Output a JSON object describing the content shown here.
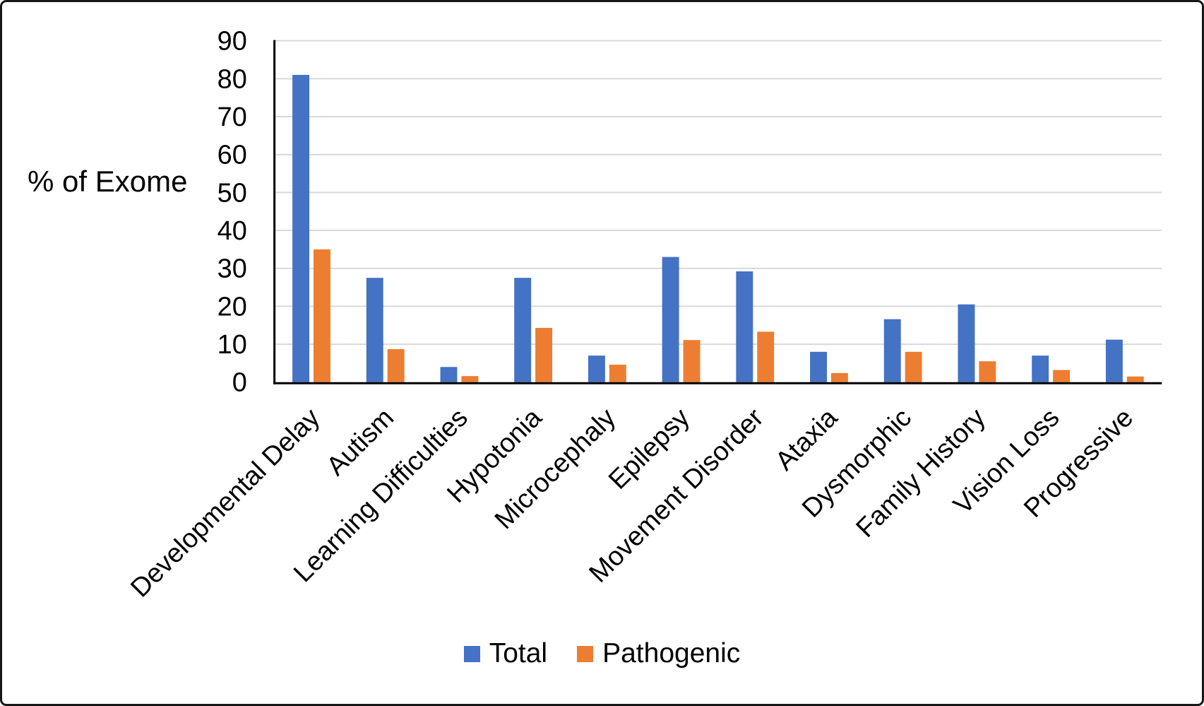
{
  "chart_data": {
    "type": "bar",
    "title": "",
    "ylabel": "% of Exome",
    "xlabel": "",
    "categories": [
      "Developmental Delay",
      "Autism",
      "Learning Difficulties",
      "Hypotonia",
      "Microcephaly",
      "Epilepsy",
      "Movement Disorder",
      "Ataxia",
      "Dysmorphic",
      "Family History",
      "Vision Loss",
      "Progressive"
    ],
    "series": [
      {
        "name": "Total",
        "color": "#4472C4",
        "values": [
          81,
          27.5,
          4,
          27.5,
          7,
          33,
          29.2,
          8,
          16.6,
          20.5,
          7,
          11.2
        ]
      },
      {
        "name": "Pathogenic",
        "color": "#ED7D31",
        "values": [
          35,
          8.7,
          1.6,
          14.3,
          4.6,
          11.1,
          13.3,
          2.4,
          8,
          5.5,
          3.2,
          1.5
        ]
      }
    ],
    "ylim": [
      0,
      90
    ],
    "yticks": [
      0,
      10,
      20,
      30,
      40,
      50,
      60,
      70,
      80,
      90
    ],
    "grid": true,
    "gridline_color": "#D9D9D9",
    "axis_color": "#000000",
    "legend_position": "bottom"
  }
}
